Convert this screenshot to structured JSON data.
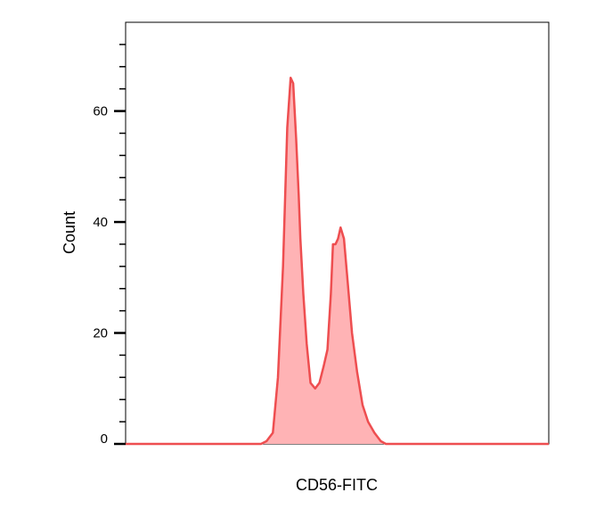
{
  "chart_data": {
    "type": "area",
    "title": "",
    "xlabel": "CD56-FITC",
    "ylabel": "Count",
    "ylim": [
      0,
      76
    ],
    "y_ticks_major": [
      0,
      20,
      40,
      60
    ],
    "y_ticks_minor": [
      4,
      8,
      12,
      16,
      24,
      28,
      32,
      36,
      44,
      48,
      52,
      56,
      64,
      68,
      72
    ],
    "x_ticks": [],
    "grid": false,
    "legend": "none",
    "colors": {
      "fill": "#ffb3b5",
      "line": "#ee4e50"
    },
    "series": [
      {
        "x": [
          0,
          0.32,
          0.333,
          0.348,
          0.36,
          0.372,
          0.382,
          0.39,
          0.396,
          0.403,
          0.409,
          0.413,
          0.42,
          0.428,
          0.437,
          0.448,
          0.458,
          0.468,
          0.477,
          0.485,
          0.49,
          0.496,
          0.502,
          0.508,
          0.516,
          0.525,
          0.535,
          0.547,
          0.56,
          0.573,
          0.588,
          0.603,
          0.615,
          0.627,
          0.64,
          0.65,
          0.662,
          0.675,
          0.69,
          0.708,
          1.0
        ],
        "values": [
          0,
          0,
          0.5,
          2,
          12,
          32,
          57,
          66,
          65,
          55,
          45,
          37,
          27,
          18,
          11,
          10,
          11,
          14,
          17,
          27,
          36,
          36,
          37,
          39,
          37,
          29,
          20,
          13,
          7,
          4,
          2,
          0.5,
          0,
          0,
          0,
          0,
          0,
          0,
          0,
          0,
          0
        ]
      }
    ]
  }
}
